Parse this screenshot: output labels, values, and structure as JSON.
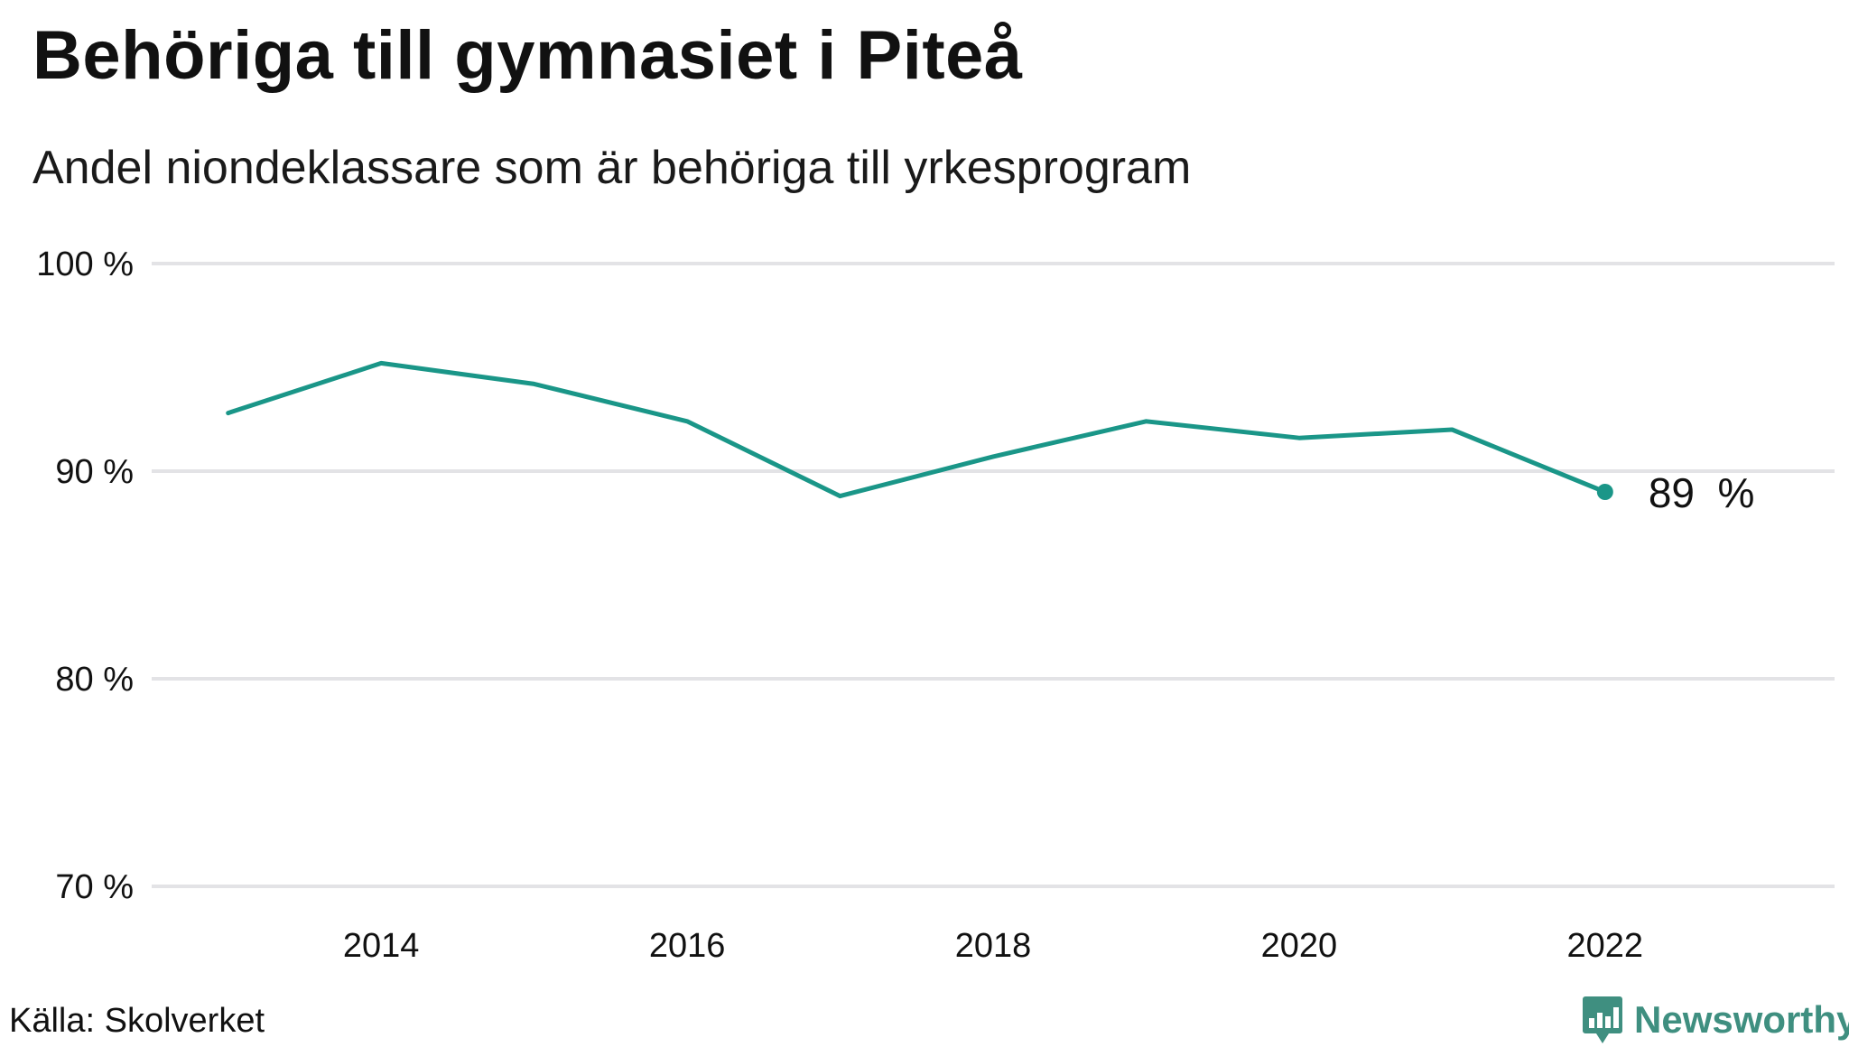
{
  "header": {
    "title": "Behöriga till gymnasiet i Piteå",
    "subtitle": "Andel niondeklassare som är behöriga till yrkesprogram"
  },
  "footer": {
    "source": "Källa: Skolverket",
    "brand": "Newsworthy",
    "brand_icon": "bar-chart-icon"
  },
  "colors": {
    "line": "#1a9688",
    "grid": "#e3e3e6",
    "text": "#111111",
    "brand": "#3f8f80"
  },
  "chart_data": {
    "type": "line",
    "x": [
      2013,
      2014,
      2015,
      2016,
      2017,
      2018,
      2019,
      2020,
      2021,
      2022
    ],
    "values": [
      92.8,
      95.2,
      94.2,
      92.4,
      88.8,
      90.7,
      92.4,
      91.6,
      92.0,
      89.0
    ],
    "ylim": [
      70,
      100
    ],
    "xlim": [
      2012.5,
      2023.5
    ],
    "yticks": [
      70,
      80,
      90,
      100
    ],
    "ytick_labels": [
      "70 %",
      "80 %",
      "90 %",
      "100 %"
    ],
    "xticks": [
      2014,
      2016,
      2018,
      2020,
      2022
    ],
    "xtick_labels": [
      "2014",
      "2016",
      "2018",
      "2020",
      "2022"
    ],
    "end_label": "89  %",
    "grid": true,
    "legend": "none",
    "xlabel": "",
    "ylabel": ""
  }
}
